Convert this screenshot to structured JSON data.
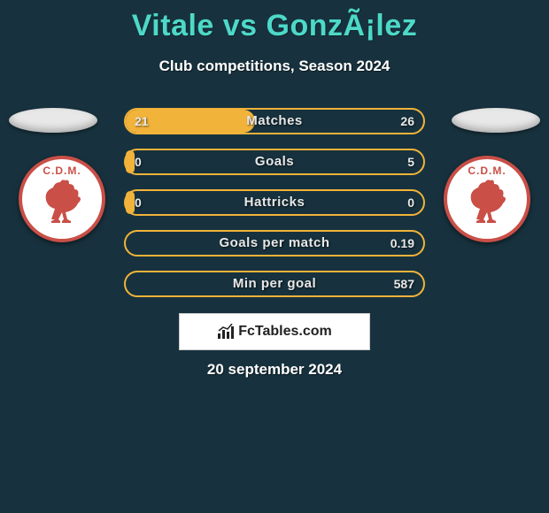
{
  "title": "Vitale vs GonzÃ¡lez",
  "subtitle": "Club competitions, Season 2024",
  "date": "20 september 2024",
  "brand": "FcTables.com",
  "colors": {
    "background": "#17323e",
    "title": "#4dd9c8",
    "text": "#ffffff",
    "bar_border": "#f2b33a",
    "bar_fill": "#f2b33a",
    "crest_border": "#c94f47",
    "crest_text": "#c94f47",
    "brand_bg": "#ffffff",
    "brand_text": "#222222"
  },
  "crest": {
    "text": "C.D.M.",
    "rooster_color": "#c94f47"
  },
  "bars": {
    "track_width": 336,
    "track_height": 30,
    "border_radius": 15,
    "label_fontsize": 15,
    "value_fontsize": 14,
    "rows": [
      {
        "label": "Matches",
        "left": "21",
        "right": "26",
        "fill_pct": 44
      },
      {
        "label": "Goals",
        "left": "0",
        "right": "5",
        "fill_pct": 3
      },
      {
        "label": "Hattricks",
        "left": "0",
        "right": "0",
        "fill_pct": 3
      },
      {
        "label": "Goals per match",
        "left": "",
        "right": "0.19",
        "fill_pct": 0
      },
      {
        "label": "Min per goal",
        "left": "",
        "right": "587",
        "fill_pct": 0
      }
    ]
  }
}
